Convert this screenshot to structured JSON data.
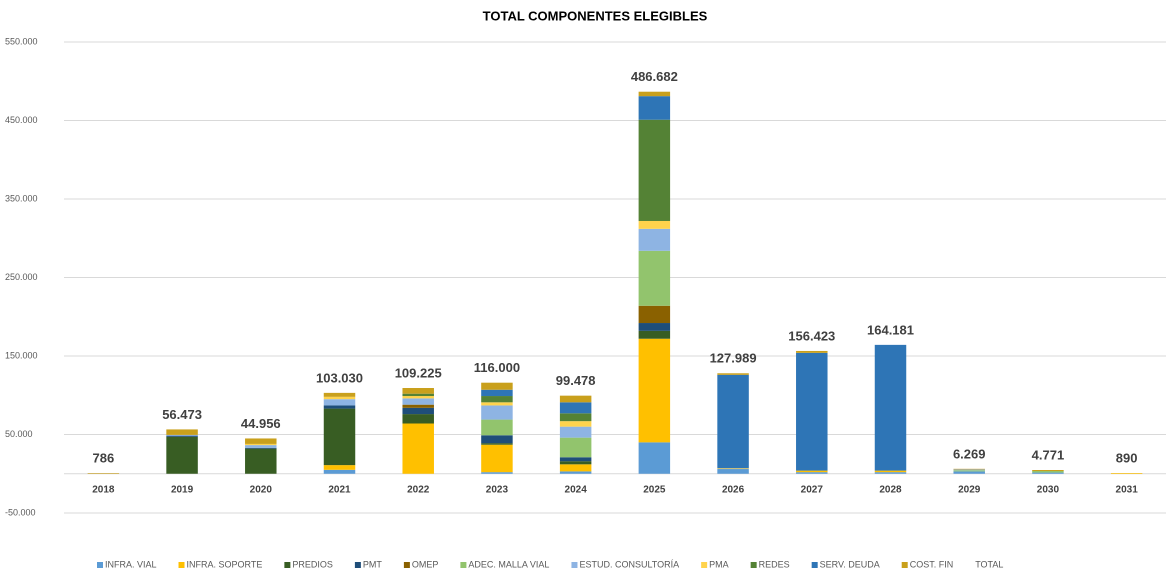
{
  "chart_data": {
    "type": "stacked_bar",
    "title": "TOTAL COMPONENTES ELEGIBLES",
    "categories": [
      "2018",
      "2019",
      "2020",
      "2021",
      "2022",
      "2023",
      "2024",
      "2025",
      "2026",
      "2027",
      "2028",
      "2029",
      "2030",
      "2031"
    ],
    "ylim": [
      -50000,
      550000
    ],
    "yticks": [
      {
        "value": -50000,
        "label": "-50.000"
      },
      {
        "value": 50000,
        "label": "50.000"
      },
      {
        "value": 150000,
        "label": "150.000"
      },
      {
        "value": 250000,
        "label": "250.000"
      },
      {
        "value": 350000,
        "label": "350.000"
      },
      {
        "value": 450000,
        "label": "450.000"
      },
      {
        "value": 550000,
        "label": "550.000"
      }
    ],
    "grid": true,
    "legend": "bottom",
    "series": [
      {
        "name": "INFRA. VIAL",
        "color": "#5b9bd5",
        "values": [
          0,
          0,
          0,
          5000,
          0,
          2000,
          3000,
          40000,
          6000,
          2000,
          2000,
          3000,
          1500,
          0
        ]
      },
      {
        "name": "INFRA. SOPORTE",
        "color": "#ffc000",
        "values": [
          0,
          0,
          0,
          6000,
          64000,
          35000,
          9000,
          132000,
          0,
          2000,
          2000,
          0,
          0,
          890
        ]
      },
      {
        "name": "PREDIOS",
        "color": "#385d23",
        "values": [
          0,
          47000,
          32000,
          72000,
          12000,
          2000,
          4000,
          10000,
          0,
          0,
          0,
          0,
          0,
          0
        ]
      },
      {
        "name": "PMT",
        "color": "#1f4e79",
        "values": [
          0,
          1500,
          1000,
          4000,
          8000,
          10000,
          5000,
          10000,
          0,
          0,
          0,
          0,
          0,
          0
        ]
      },
      {
        "name": "OMEP",
        "color": "#8a6100",
        "values": [
          0,
          0,
          0,
          0,
          4000,
          0,
          0,
          22000,
          0,
          0,
          0,
          0,
          0,
          0
        ]
      },
      {
        "name": "ADEC. MALLA VIAL",
        "color": "#92c46d",
        "values": [
          0,
          0,
          0,
          0,
          0,
          20000,
          25000,
          70000,
          0,
          0,
          0,
          1500,
          2000,
          0
        ]
      },
      {
        "name": "ESTUD. CONSULTORÍA",
        "color": "#8eb4e3",
        "values": [
          0,
          1000,
          3500,
          8000,
          8000,
          18000,
          14000,
          28000,
          0,
          0,
          0,
          1000,
          0,
          0
        ]
      },
      {
        "name": "PMA",
        "color": "#ffd34d",
        "values": [
          0,
          0,
          1500,
          3000,
          3000,
          4000,
          7000,
          10000,
          1000,
          0,
          0,
          0,
          0,
          0
        ]
      },
      {
        "name": "REDES",
        "color": "#548235",
        "values": [
          0,
          0,
          0,
          0,
          3000,
          8000,
          10000,
          129000,
          0,
          0,
          0,
          0,
          0,
          0
        ]
      },
      {
        "name": "SERV. DEUDA",
        "color": "#2e75b6",
        "values": [
          0,
          0,
          0,
          0,
          0,
          8000,
          14000,
          30000,
          119000,
          150000,
          160181,
          0,
          0,
          0
        ]
      },
      {
        "name": "COST. FIN",
        "color": "#c9a01c",
        "values": [
          786,
          6973,
          6956,
          5030,
          7225,
          9000,
          8478,
          5682,
          1989,
          2423,
          0,
          769,
          1271,
          0
        ]
      },
      {
        "name": "TOTAL",
        "values": [
          786,
          56473,
          44956,
          103030,
          109225,
          116000,
          99478,
          486682,
          127989,
          156423,
          164181,
          6269,
          4771,
          890
        ],
        "value_labels": [
          "786",
          "56.473",
          "44.956",
          "103.030",
          "109.225",
          "116.000",
          "99.478",
          "486.682",
          "127.989",
          "156.423",
          "164.181",
          "6.269",
          "4.771",
          "890"
        ]
      }
    ]
  }
}
